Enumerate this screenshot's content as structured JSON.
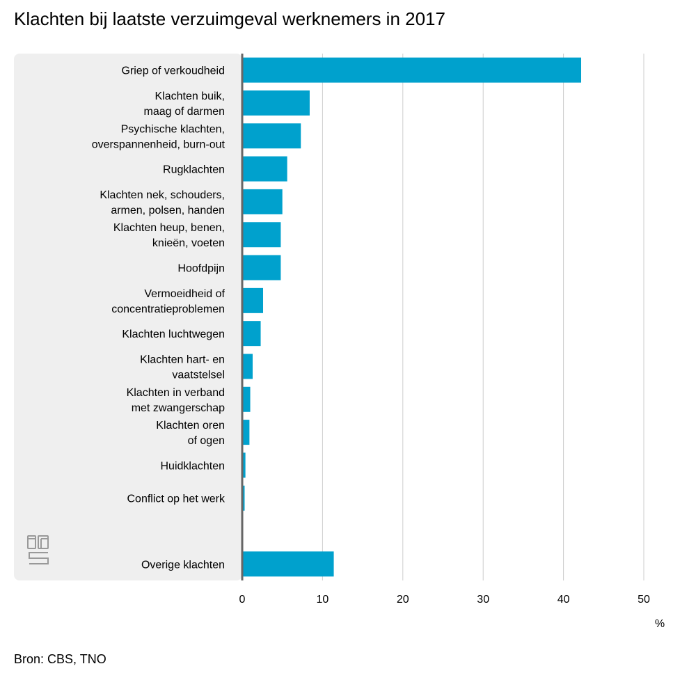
{
  "title": "Klachten bij laatste verzuimgeval werknemers in 2017",
  "source": "Bron: CBS, TNO",
  "logo_text": "cbs",
  "colors": {
    "bar": "#00a1cd",
    "panel": "#efefef",
    "grid": "#cccccc",
    "axis": "#666666"
  },
  "chart_data": {
    "type": "bar",
    "orientation": "horizontal",
    "title": "Klachten bij laatste verzuimgeval werknemers in 2017",
    "unit": "%",
    "xlim": [
      0,
      50
    ],
    "ticks": [
      0,
      10,
      20,
      30,
      40,
      50
    ],
    "grid": true,
    "categories": [
      [
        "Griep of verkoudheid"
      ],
      [
        "Klachten buik,",
        "maag of darmen"
      ],
      [
        "Psychische klachten,",
        "overspannenheid, burn-out"
      ],
      [
        "Rugklachten"
      ],
      [
        "Klachten nek, schouders,",
        "armen, polsen, handen"
      ],
      [
        "Klachten heup, benen,",
        "knieën, voeten"
      ],
      [
        "Hoofdpijn"
      ],
      [
        "Vermoeidheid of",
        "concentratieproblemen"
      ],
      [
        "Klachten luchtwegen"
      ],
      [
        "Klachten hart- en",
        "vaatstelsel"
      ],
      [
        "Klachten in verband",
        "met zwangerschap"
      ],
      [
        "Klachten oren",
        "of ogen"
      ],
      [
        "Huidklachten"
      ],
      [
        "Conflict op het werk"
      ],
      [],
      [
        "Overige klachten"
      ]
    ],
    "values": [
      42.2,
      8.4,
      7.3,
      5.6,
      5.0,
      4.8,
      4.8,
      2.6,
      2.3,
      1.3,
      1.0,
      0.9,
      0.4,
      0.3,
      null,
      11.4
    ]
  }
}
